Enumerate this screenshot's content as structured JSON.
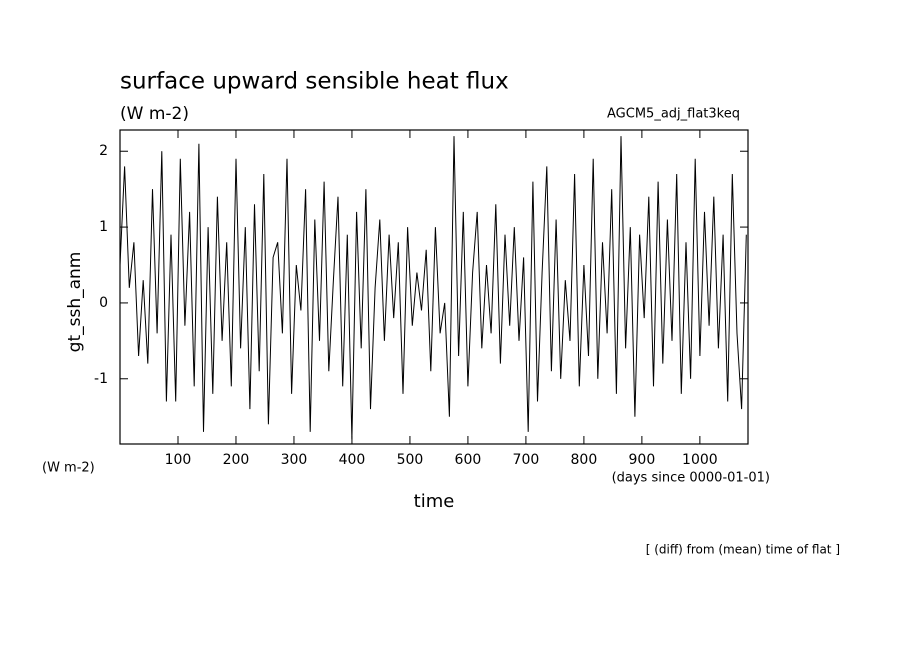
{
  "chart_data": {
    "type": "line",
    "title": "surface upward sensible heat flux",
    "subtitle": "(W m-2)",
    "run_label": "AGCM5_adj_flat3keq",
    "y_label": "gt_ssh_anm",
    "y_units": "(W m-2)",
    "x_units": "(days since 0000-01-01)",
    "x_label": "time",
    "note": "[ (diff) from (mean) time of flat ]",
    "color": "#000000",
    "xlim": [
      0,
      1083
    ],
    "ylim": [
      -1.86,
      2.28
    ],
    "xticks": [
      100,
      200,
      300,
      400,
      500,
      600,
      700,
      800,
      900,
      1000
    ],
    "yticks": [
      -1,
      0,
      1,
      2
    ],
    "x": [
      0,
      8,
      16,
      24,
      32,
      40,
      48,
      56,
      64,
      72,
      80,
      88,
      96,
      104,
      112,
      120,
      128,
      136,
      144,
      152,
      160,
      168,
      176,
      184,
      192,
      200,
      208,
      216,
      224,
      232,
      240,
      248,
      256,
      264,
      272,
      280,
      288,
      296,
      304,
      312,
      320,
      328,
      336,
      344,
      352,
      360,
      368,
      376,
      384,
      392,
      400,
      408,
      416,
      424,
      432,
      440,
      448,
      456,
      464,
      472,
      480,
      488,
      496,
      504,
      512,
      520,
      528,
      536,
      544,
      552,
      560,
      568,
      576,
      584,
      592,
      600,
      608,
      616,
      624,
      632,
      640,
      648,
      656,
      664,
      672,
      680,
      688,
      696,
      704,
      712,
      720,
      728,
      736,
      744,
      752,
      760,
      768,
      776,
      784,
      792,
      800,
      808,
      816,
      824,
      832,
      840,
      848,
      856,
      864,
      872,
      880,
      888,
      896,
      904,
      912,
      920,
      928,
      936,
      944,
      952,
      960,
      968,
      976,
      984,
      992,
      1000,
      1008,
      1016,
      1024,
      1032,
      1040,
      1048,
      1056,
      1064,
      1072,
      1080
    ],
    "values": [
      0.5,
      1.8,
      0.2,
      0.8,
      -0.7,
      0.3,
      -0.8,
      1.5,
      -0.4,
      2.0,
      -1.3,
      0.9,
      -1.3,
      1.9,
      -0.3,
      1.2,
      -1.1,
      2.1,
      -1.7,
      1.0,
      -1.2,
      1.4,
      -0.5,
      0.8,
      -1.1,
      1.9,
      -0.6,
      1.0,
      -1.4,
      1.3,
      -0.9,
      1.7,
      -1.6,
      0.6,
      0.8,
      -0.4,
      1.9,
      -1.2,
      0.5,
      -0.1,
      1.5,
      -1.7,
      1.1,
      -0.5,
      1.6,
      -0.9,
      0.3,
      1.4,
      -1.1,
      0.9,
      -1.8,
      1.2,
      -0.6,
      1.5,
      -1.4,
      0.2,
      1.1,
      -0.5,
      0.9,
      -0.2,
      0.8,
      -1.2,
      1.0,
      -0.3,
      0.4,
      -0.1,
      0.7,
      -0.9,
      1.0,
      -0.4,
      0.0,
      -1.5,
      2.2,
      -0.7,
      1.2,
      -1.1,
      0.4,
      1.2,
      -0.6,
      0.5,
      -0.4,
      1.3,
      -0.8,
      0.9,
      -0.3,
      1.0,
      -0.5,
      0.6,
      -1.7,
      1.6,
      -1.3,
      0.4,
      1.8,
      -0.9,
      1.1,
      -1.0,
      0.3,
      -0.5,
      1.7,
      -1.1,
      0.5,
      -0.7,
      1.9,
      -1.0,
      0.8,
      -0.4,
      1.5,
      -1.2,
      2.2,
      -0.6,
      1.0,
      -1.5,
      0.9,
      -0.2,
      1.4,
      -1.1,
      1.6,
      -0.8,
      1.1,
      -0.5,
      1.7,
      -1.2,
      0.8,
      -1.0,
      1.9,
      -0.7,
      1.2,
      -0.3,
      1.4,
      -0.6,
      0.9,
      -1.3,
      1.7,
      -0.4,
      -1.4,
      0.9
    ]
  }
}
